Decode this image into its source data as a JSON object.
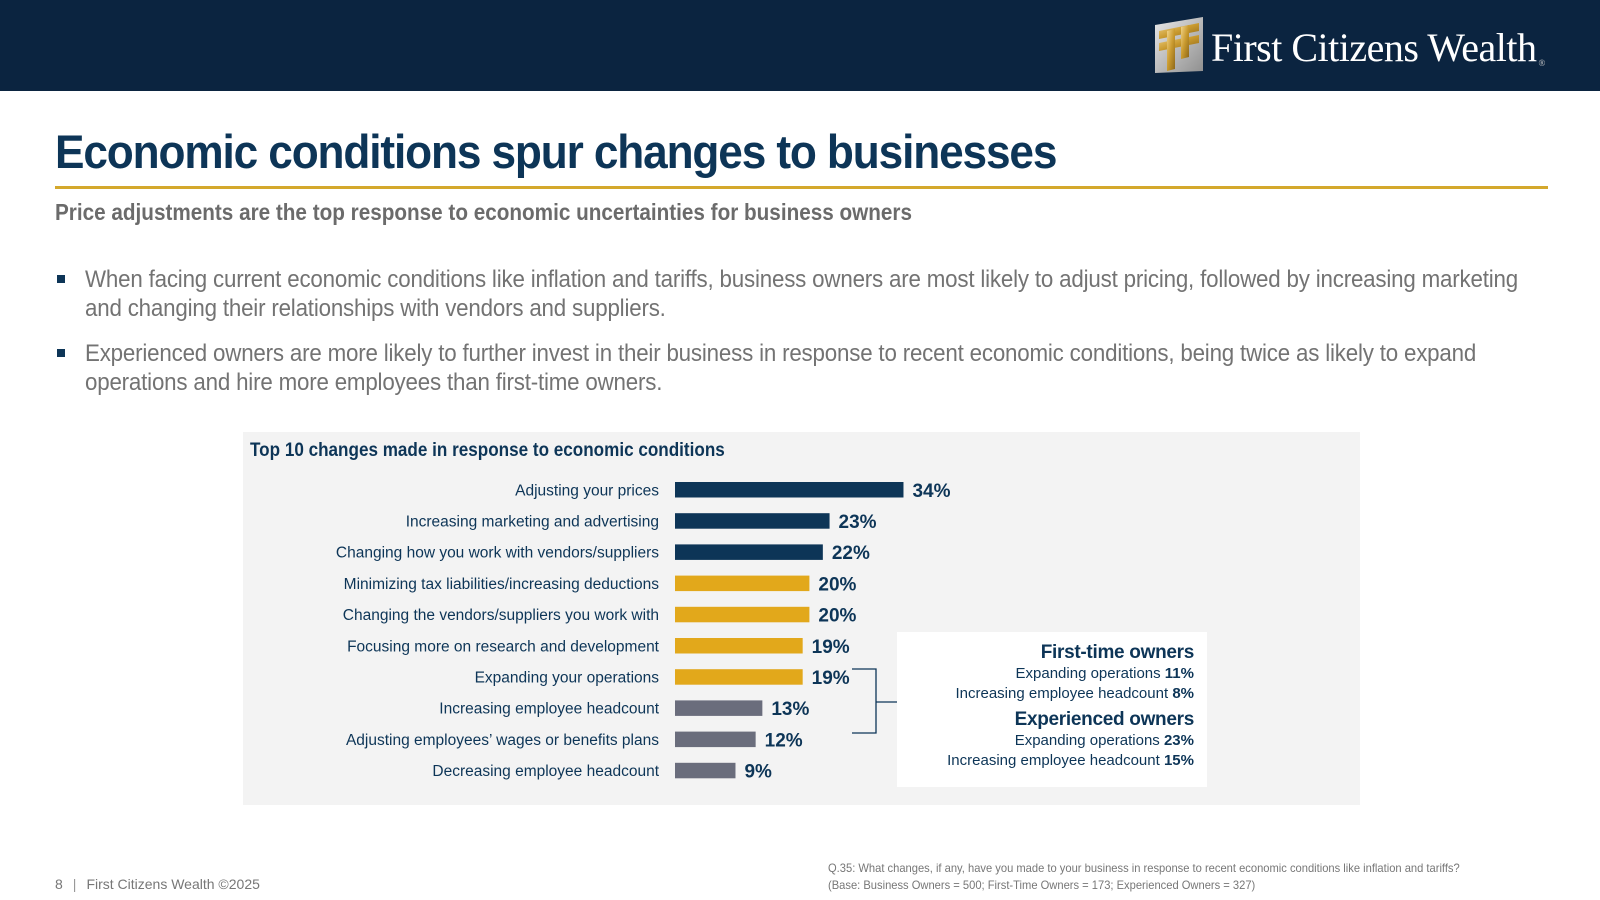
{
  "header": {
    "brand_name": "First Citizens Wealth",
    "brand_mark": "®",
    "logo_icon": "ff-logo-icon"
  },
  "title": "Economic conditions spur changes to businesses",
  "subtitle": "Price adjustments are the top response to economic uncertainties for business owners",
  "bullets": [
    "When facing current economic conditions like inflation and tariffs, business owners are most likely to adjust pricing, followed by increasing marketing and changing their relationships with vendors and suppliers.",
    "Experienced owners are more likely to further invest in their business in response to recent economic conditions, being twice as likely to expand operations and hire more employees than first-time owners."
  ],
  "colors": {
    "navy": "#0d3557",
    "gold": "#e2a81b",
    "slate": "#6a6d7c",
    "header_bg": "#0b2440",
    "rule": "#d4a82c"
  },
  "chart_data": {
    "type": "bar",
    "orientation": "horizontal",
    "title": "Top 10 changes made in response to economic conditions",
    "xlabel": "",
    "ylabel": "",
    "xlim": [
      0,
      34
    ],
    "grid": false,
    "categories": [
      "Adjusting your prices",
      "Increasing marketing and advertising",
      "Changing how you work with vendors/suppliers",
      "Minimizing tax liabilities/increasing deductions",
      "Changing the vendors/suppliers you work with",
      "Focusing more on research and development",
      "Expanding your operations",
      "Increasing employee headcount",
      "Adjusting employees’ wages or benefits plans",
      "Decreasing employee headcount"
    ],
    "values": [
      34,
      23,
      22,
      20,
      20,
      19,
      19,
      13,
      12,
      9
    ],
    "value_labels": [
      "34%",
      "23%",
      "22%",
      "20%",
      "20%",
      "19%",
      "19%",
      "13%",
      "12%",
      "9%"
    ],
    "bar_color_groups": [
      "navy",
      "navy",
      "navy",
      "gold",
      "gold",
      "gold",
      "gold",
      "slate",
      "slate",
      "slate"
    ],
    "annotation": {
      "brackets_categories": [
        "Expanding your operations",
        "Increasing employee headcount"
      ],
      "groups": [
        {
          "heading": "First-time owners",
          "items": [
            {
              "label": "Expanding operations",
              "value": "11%"
            },
            {
              "label": "Increasing employee headcount",
              "value": "8%"
            }
          ]
        },
        {
          "heading": "Experienced owners",
          "items": [
            {
              "label": "Expanding operations",
              "value": "23%"
            },
            {
              "label": "Increasing employee headcount",
              "value": "15%"
            }
          ]
        }
      ]
    }
  },
  "footer": {
    "page_number": "8",
    "separator": "|",
    "copyright": "First Citizens Wealth ©2025",
    "question": "Q.35:  What changes, if any, have you made to your business in response to recent economic conditions like inflation and tariffs?",
    "base": "(Base: Business Owners = 500; First-Time Owners = 173; Experienced Owners = 327)"
  }
}
